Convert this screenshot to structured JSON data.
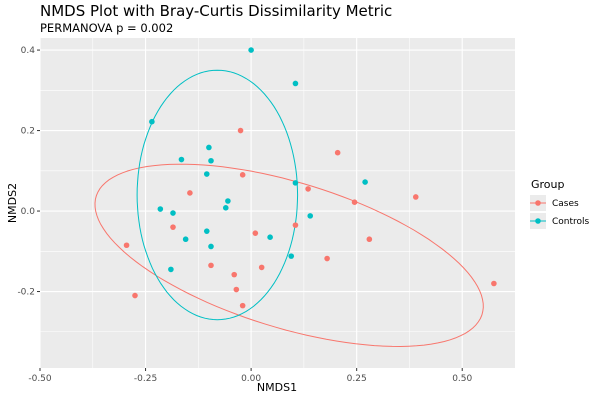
{
  "chart_data": {
    "type": "scatter",
    "title": "NMDS Plot with Bray-Curtis Dissimilarity Metric",
    "subtitle": "PERMANOVA p = 0.002",
    "xlabel": "NMDS1",
    "ylabel": "NMDS2",
    "xlim": [
      -0.5,
      0.625
    ],
    "ylim": [
      -0.39,
      0.43
    ],
    "xticks": [
      -0.5,
      -0.25,
      0.0,
      0.25,
      0.5
    ],
    "xtick_labels": [
      "-0.50",
      "-0.25",
      "0.00",
      "0.25",
      "0.50"
    ],
    "yticks": [
      -0.2,
      0.0,
      0.2,
      0.4
    ],
    "ytick_labels": [
      "-0.2",
      "0.0",
      "0.2",
      "0.4"
    ],
    "grid": true,
    "legend": {
      "title": "Group",
      "position": "right"
    },
    "series": [
      {
        "name": "Cases",
        "color": "#F8766D",
        "points": [
          {
            "x": -0.295,
            "y": -0.085
          },
          {
            "x": -0.275,
            "y": -0.21
          },
          {
            "x": -0.185,
            "y": -0.04
          },
          {
            "x": -0.145,
            "y": 0.045
          },
          {
            "x": -0.095,
            "y": -0.135
          },
          {
            "x": -0.04,
            "y": -0.158
          },
          {
            "x": -0.035,
            "y": -0.195
          },
          {
            "x": -0.025,
            "y": 0.2
          },
          {
            "x": -0.02,
            "y": 0.09
          },
          {
            "x": -0.02,
            "y": -0.235
          },
          {
            "x": 0.01,
            "y": -0.055
          },
          {
            "x": 0.025,
            "y": -0.14
          },
          {
            "x": 0.105,
            "y": -0.035
          },
          {
            "x": 0.135,
            "y": 0.055
          },
          {
            "x": 0.18,
            "y": -0.118
          },
          {
            "x": 0.205,
            "y": 0.145
          },
          {
            "x": 0.245,
            "y": 0.022
          },
          {
            "x": 0.28,
            "y": -0.07
          },
          {
            "x": 0.39,
            "y": 0.035
          },
          {
            "x": 0.575,
            "y": -0.18
          }
        ]
      },
      {
        "name": "Controls",
        "color": "#00BFC4",
        "points": [
          {
            "x": -0.235,
            "y": 0.222
          },
          {
            "x": -0.215,
            "y": 0.005
          },
          {
            "x": -0.19,
            "y": -0.145
          },
          {
            "x": -0.185,
            "y": -0.005
          },
          {
            "x": -0.165,
            "y": 0.128
          },
          {
            "x": -0.155,
            "y": -0.07
          },
          {
            "x": -0.105,
            "y": -0.05
          },
          {
            "x": -0.105,
            "y": 0.092
          },
          {
            "x": -0.1,
            "y": 0.158
          },
          {
            "x": -0.095,
            "y": 0.125
          },
          {
            "x": -0.095,
            "y": -0.088
          },
          {
            "x": -0.06,
            "y": 0.008
          },
          {
            "x": -0.055,
            "y": 0.025
          },
          {
            "x": 0.0,
            "y": 0.4
          },
          {
            "x": 0.045,
            "y": -0.065
          },
          {
            "x": 0.095,
            "y": -0.112
          },
          {
            "x": 0.105,
            "y": 0.07
          },
          {
            "x": 0.105,
            "y": 0.317
          },
          {
            "x": 0.14,
            "y": -0.012
          },
          {
            "x": 0.27,
            "y": 0.072
          }
        ]
      }
    ],
    "ellipses": [
      {
        "group": "Cases",
        "color": "#F8766D",
        "cx": 0.09,
        "cy": -0.11,
        "rx": 0.48,
        "ry": 0.18,
        "rotation_deg": -18
      },
      {
        "group": "Controls",
        "color": "#00BFC4",
        "cx": -0.08,
        "cy": 0.04,
        "rx": 0.19,
        "ry": 0.31,
        "rotation_deg": 0
      }
    ]
  }
}
